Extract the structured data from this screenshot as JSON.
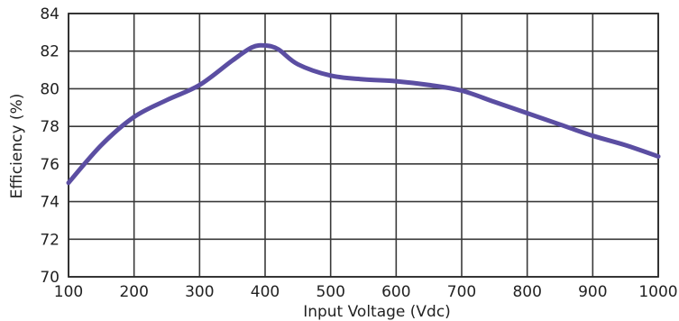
{
  "chart_data": {
    "type": "line",
    "xlabel": "Input Voltage (Vdc)",
    "ylabel": "Efficiency (%)",
    "xlim": [
      100,
      1000
    ],
    "ylim": [
      70,
      84
    ],
    "x_ticks": [
      "100",
      "200",
      "300",
      "400",
      "500",
      "600",
      "700",
      "800",
      "900",
      "1000"
    ],
    "y_ticks": [
      "70",
      "72",
      "74",
      "76",
      "78",
      "80",
      "82",
      "84"
    ],
    "grid": true,
    "series_color": "#5b4ea2",
    "series": [
      {
        "x": [
          100,
          150,
          200,
          250,
          300,
          350,
          380,
          400,
          420,
          450,
          500,
          550,
          600,
          650,
          700,
          750,
          800,
          850,
          900,
          950,
          1000
        ],
        "y": [
          75.0,
          77.0,
          78.5,
          79.4,
          80.2,
          81.5,
          82.2,
          82.3,
          82.1,
          81.3,
          80.7,
          80.5,
          80.4,
          80.2,
          79.9,
          79.3,
          78.7,
          78.1,
          77.5,
          77.0,
          76.4
        ]
      }
    ]
  }
}
